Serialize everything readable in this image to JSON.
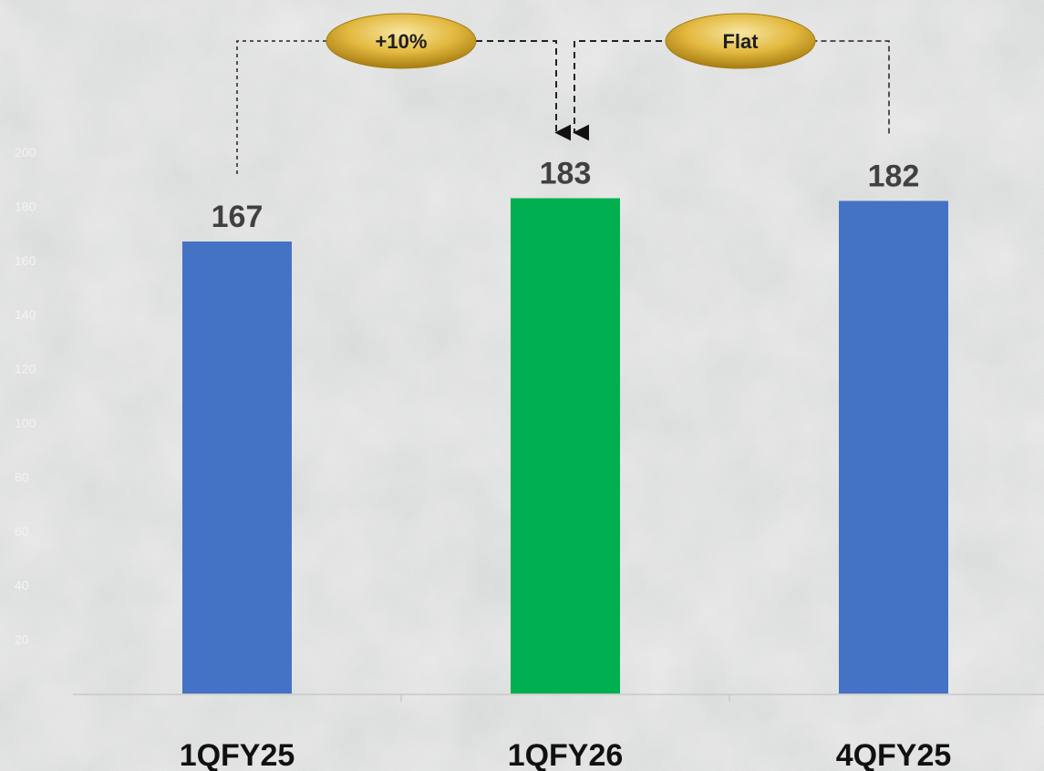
{
  "chart_data": {
    "type": "bar",
    "categories": [
      "1QFY25",
      "1QFY26",
      "4QFY25"
    ],
    "values": [
      167,
      183,
      182
    ],
    "data_labels": [
      "167",
      "183",
      "182"
    ],
    "bar_colors": [
      "#4472c4",
      "#00b050",
      "#4472c4"
    ],
    "ylim": [
      0,
      200
    ],
    "y_ticks": [
      20,
      40,
      60,
      80,
      100,
      120,
      140,
      160,
      180,
      200
    ],
    "grid": false,
    "legend": "none",
    "annotations": [
      {
        "text": "+10%",
        "from": "1QFY25",
        "to": "1QFY26"
      },
      {
        "text": "Flat",
        "from": "4QFY25",
        "to": "1QFY26"
      }
    ]
  },
  "colors": {
    "background": "#e6e7e6",
    "badge_fill": "#e3b93f",
    "badge_highlight": "#f7e6a2",
    "badge_shadow": "#a67c12",
    "axis": "#c8c8c8",
    "y_tick": "#f3f3f3"
  }
}
